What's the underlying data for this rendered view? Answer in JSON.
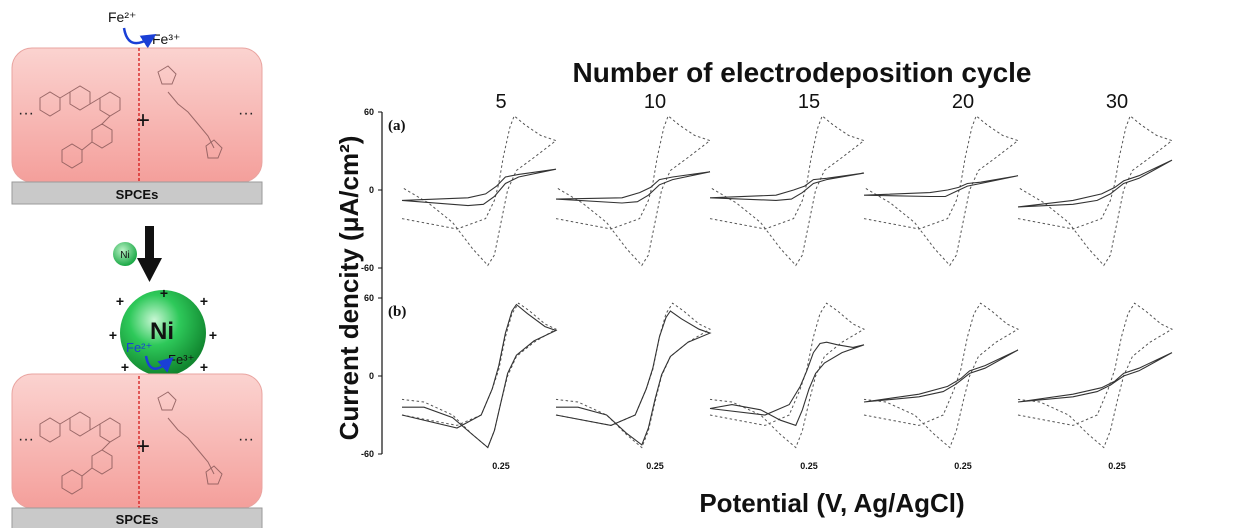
{
  "scheme": {
    "fe2_label": "Fe²⁺",
    "fe3_label": "Fe³⁺",
    "electrode_label": "SPCEs",
    "ni_small_label": "Ni",
    "ni_big_label": "Ni",
    "plus_label": "+",
    "dots_label": "···",
    "charge_sign": "+",
    "colors": {
      "film": "#f7b8b5",
      "electrode": "#c9c9c9",
      "ni": "#2ec95a",
      "arrow_blue": "#1a3fd6",
      "dashed_red": "#d41a1a"
    }
  },
  "chart_data": {
    "type": "line",
    "title": "Number of electrodeposition cycle",
    "xlabel": "Potential (V, Ag/AgCl)",
    "ylabel": "Current dencity (μA/cm²)",
    "ylim": [
      -60,
      60
    ],
    "yticks": [
      60,
      0,
      -60
    ],
    "cycles": [
      "5",
      "10",
      "15",
      "20",
      "30"
    ],
    "xtick_label": "0.25",
    "panels": [
      {
        "label": "(a)",
        "reference": {
          "style": "dashed",
          "forward": [
            [
              -0.2,
              -22
            ],
            [
              0.05,
              -30
            ],
            [
              0.18,
              -22
            ],
            [
              0.22,
              -8
            ],
            [
              0.24,
              5
            ],
            [
              0.26,
              25
            ],
            [
              0.29,
              48
            ],
            [
              0.31,
              57
            ],
            [
              0.36,
              50
            ],
            [
              0.43,
              42
            ],
            [
              0.5,
              38
            ]
          ],
          "reverse": [
            [
              0.5,
              38
            ],
            [
              0.4,
              25
            ],
            [
              0.32,
              15
            ],
            [
              0.28,
              0
            ],
            [
              0.25,
              -25
            ],
            [
              0.22,
              -50
            ],
            [
              0.19,
              -58
            ],
            [
              0.12,
              -45
            ],
            [
              0.03,
              -25
            ],
            [
              -0.08,
              -10
            ],
            [
              -0.2,
              2
            ]
          ]
        },
        "cycles": [
          {
            "cycle": "5",
            "forward": [
              [
                -0.2,
                -8
              ],
              [
                0.1,
                -6
              ],
              [
                0.18,
                -3
              ],
              [
                0.23,
                3
              ],
              [
                0.27,
                10
              ],
              [
                0.33,
                12
              ],
              [
                0.5,
                16
              ]
            ],
            "reverse": [
              [
                0.5,
                16
              ],
              [
                0.33,
                10
              ],
              [
                0.27,
                5
              ],
              [
                0.22,
                -5
              ],
              [
                0.17,
                -11
              ],
              [
                0.1,
                -12
              ],
              [
                -0.2,
                -8
              ]
            ]
          },
          {
            "cycle": "10",
            "forward": [
              [
                -0.2,
                -7
              ],
              [
                0.1,
                -6
              ],
              [
                0.18,
                -2
              ],
              [
                0.23,
                2
              ],
              [
                0.27,
                8
              ],
              [
                0.33,
                10
              ],
              [
                0.5,
                14
              ]
            ],
            "reverse": [
              [
                0.5,
                14
              ],
              [
                0.33,
                8
              ],
              [
                0.27,
                4
              ],
              [
                0.22,
                -4
              ],
              [
                0.17,
                -9
              ],
              [
                0.1,
                -10
              ],
              [
                -0.2,
                -7
              ]
            ]
          },
          {
            "cycle": "15",
            "forward": [
              [
                -0.2,
                -6
              ],
              [
                0.1,
                -4
              ],
              [
                0.18,
                0
              ],
              [
                0.23,
                3
              ],
              [
                0.27,
                8
              ],
              [
                0.33,
                9
              ],
              [
                0.5,
                13
              ]
            ],
            "reverse": [
              [
                0.5,
                13
              ],
              [
                0.33,
                8
              ],
              [
                0.27,
                5
              ],
              [
                0.22,
                -2
              ],
              [
                0.17,
                -7
              ],
              [
                0.1,
                -8
              ],
              [
                -0.2,
                -6
              ]
            ]
          },
          {
            "cycle": "20",
            "forward": [
              [
                -0.2,
                -4
              ],
              [
                0.1,
                -2
              ],
              [
                0.18,
                0
              ],
              [
                0.23,
                2
              ],
              [
                0.27,
                5
              ],
              [
                0.33,
                6
              ],
              [
                0.5,
                11
              ]
            ],
            "reverse": [
              [
                0.5,
                11
              ],
              [
                0.33,
                5
              ],
              [
                0.27,
                3
              ],
              [
                0.22,
                -1
              ],
              [
                0.17,
                -5
              ],
              [
                0.1,
                -5
              ],
              [
                -0.2,
                -4
              ]
            ]
          },
          {
            "cycle": "30",
            "forward": [
              [
                -0.2,
                -13
              ],
              [
                0.05,
                -8
              ],
              [
                0.18,
                -3
              ],
              [
                0.24,
                2
              ],
              [
                0.28,
                7
              ],
              [
                0.35,
                11
              ],
              [
                0.5,
                23
              ]
            ],
            "reverse": [
              [
                0.5,
                23
              ],
              [
                0.35,
                9
              ],
              [
                0.28,
                5
              ],
              [
                0.22,
                -3
              ],
              [
                0.16,
                -8
              ],
              [
                0.05,
                -11
              ],
              [
                -0.2,
                -13
              ]
            ]
          }
        ]
      },
      {
        "label": "(b)",
        "reference": {
          "style": "dashed",
          "forward": [
            [
              -0.2,
              -30
            ],
            [
              0.05,
              -38
            ],
            [
              0.16,
              -30
            ],
            [
              0.21,
              -10
            ],
            [
              0.24,
              5
            ],
            [
              0.27,
              30
            ],
            [
              0.3,
              48
            ],
            [
              0.33,
              56
            ],
            [
              0.38,
              50
            ],
            [
              0.45,
              40
            ],
            [
              0.5,
              36
            ]
          ],
          "reverse": [
            [
              0.5,
              36
            ],
            [
              0.4,
              26
            ],
            [
              0.32,
              15
            ],
            [
              0.28,
              0
            ],
            [
              0.25,
              -20
            ],
            [
              0.22,
              -42
            ],
            [
              0.19,
              -55
            ],
            [
              0.12,
              -45
            ],
            [
              0.03,
              -30
            ],
            [
              -0.1,
              -20
            ],
            [
              -0.2,
              -18
            ]
          ]
        },
        "cycles": [
          {
            "cycle": "5",
            "forward": [
              [
                -0.2,
                -30
              ],
              [
                0.05,
                -40
              ],
              [
                0.16,
                -30
              ],
              [
                0.21,
                -10
              ],
              [
                0.24,
                8
              ],
              [
                0.27,
                33
              ],
              [
                0.3,
                50
              ],
              [
                0.32,
                55
              ],
              [
                0.37,
                48
              ],
              [
                0.45,
                38
              ],
              [
                0.5,
                35
              ]
            ],
            "reverse": [
              [
                0.5,
                35
              ],
              [
                0.4,
                27
              ],
              [
                0.32,
                16
              ],
              [
                0.28,
                2
              ],
              [
                0.25,
                -20
              ],
              [
                0.22,
                -42
              ],
              [
                0.19,
                -55
              ],
              [
                0.12,
                -45
              ],
              [
                0.03,
                -32
              ],
              [
                -0.1,
                -24
              ],
              [
                -0.2,
                -24
              ]
            ]
          },
          {
            "cycle": "10",
            "forward": [
              [
                -0.2,
                -30
              ],
              [
                0.05,
                -38
              ],
              [
                0.16,
                -30
              ],
              [
                0.21,
                -10
              ],
              [
                0.24,
                6
              ],
              [
                0.27,
                30
              ],
              [
                0.3,
                45
              ],
              [
                0.32,
                50
              ],
              [
                0.37,
                44
              ],
              [
                0.45,
                36
              ],
              [
                0.5,
                33
              ]
            ],
            "reverse": [
              [
                0.5,
                33
              ],
              [
                0.4,
                26
              ],
              [
                0.32,
                15
              ],
              [
                0.28,
                1
              ],
              [
                0.25,
                -18
              ],
              [
                0.22,
                -40
              ],
              [
                0.19,
                -53
              ],
              [
                0.12,
                -44
              ],
              [
                0.03,
                -30
              ],
              [
                -0.1,
                -24
              ],
              [
                -0.2,
                -24
              ]
            ]
          },
          {
            "cycle": "15",
            "forward": [
              [
                -0.2,
                -25
              ],
              [
                0.05,
                -30
              ],
              [
                0.16,
                -22
              ],
              [
                0.21,
                -8
              ],
              [
                0.24,
                4
              ],
              [
                0.27,
                18
              ],
              [
                0.3,
                25
              ],
              [
                0.33,
                26
              ],
              [
                0.38,
                24
              ],
              [
                0.45,
                22
              ],
              [
                0.5,
                24
              ]
            ],
            "reverse": [
              [
                0.5,
                24
              ],
              [
                0.4,
                18
              ],
              [
                0.32,
                10
              ],
              [
                0.28,
                2
              ],
              [
                0.25,
                -10
              ],
              [
                0.22,
                -26
              ],
              [
                0.19,
                -38
              ],
              [
                0.12,
                -34
              ],
              [
                0.03,
                -26
              ],
              [
                -0.1,
                -22
              ],
              [
                -0.2,
                -25
              ]
            ]
          },
          {
            "cycle": "20",
            "forward": [
              [
                -0.2,
                -20
              ],
              [
                0.05,
                -14
              ],
              [
                0.18,
                -8
              ],
              [
                0.24,
                -2
              ],
              [
                0.28,
                4
              ],
              [
                0.35,
                8
              ],
              [
                0.5,
                20
              ]
            ],
            "reverse": [
              [
                0.5,
                20
              ],
              [
                0.35,
                6
              ],
              [
                0.28,
                2
              ],
              [
                0.22,
                -6
              ],
              [
                0.16,
                -12
              ],
              [
                0.05,
                -16
              ],
              [
                -0.2,
                -20
              ]
            ]
          },
          {
            "cycle": "30",
            "forward": [
              [
                -0.2,
                -20
              ],
              [
                0.05,
                -14
              ],
              [
                0.18,
                -9
              ],
              [
                0.24,
                -4
              ],
              [
                0.28,
                2
              ],
              [
                0.35,
                6
              ],
              [
                0.5,
                18
              ]
            ],
            "reverse": [
              [
                0.5,
                18
              ],
              [
                0.35,
                4
              ],
              [
                0.28,
                0
              ],
              [
                0.22,
                -7
              ],
              [
                0.16,
                -12
              ],
              [
                0.05,
                -16
              ],
              [
                -0.2,
                -20
              ]
            ]
          }
        ]
      }
    ]
  }
}
